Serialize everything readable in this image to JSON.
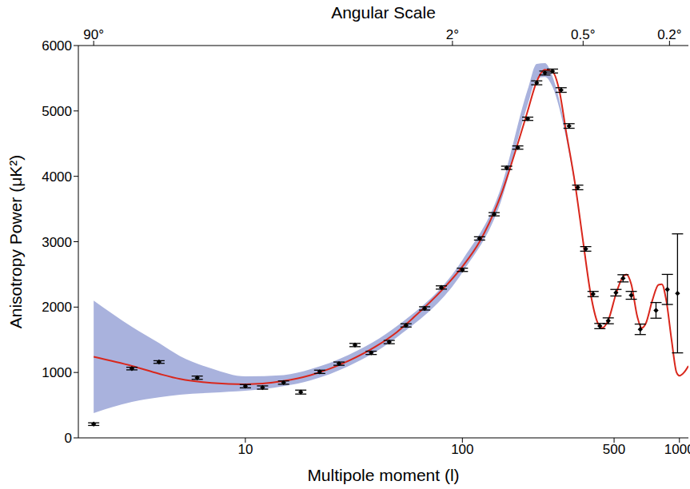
{
  "chart_data": {
    "type": "scatter",
    "x_label": "Multipole moment (l)",
    "y_label": "Anisotropy Power (μK²)",
    "x2_label": "Angular Scale",
    "log": "x",
    "xlim": [
      1.7,
      1100
    ],
    "xticks": [
      10,
      100,
      500,
      1000
    ],
    "x2ticks": [
      {
        "value": 2,
        "label": "90°"
      },
      {
        "value": 90,
        "label": "2°"
      },
      {
        "value": 360,
        "label": "0.5°"
      },
      {
        "value": 900,
        "label": "0.2°"
      }
    ],
    "ylim": [
      0,
      6000
    ],
    "yticks": [
      0,
      1000,
      2000,
      3000,
      4000,
      5000,
      6000
    ],
    "series": [
      {
        "type": "area",
        "color": "#a9b2dd",
        "x": [
          2,
          3,
          4,
          5,
          7,
          10,
          15,
          20,
          30,
          50,
          100,
          150,
          200,
          220,
          240,
          260,
          300,
          330
        ],
        "low": [
          380,
          550,
          620,
          660,
          690,
          720,
          790,
          880,
          1100,
          1540,
          2530,
          3600,
          5100,
          5490,
          5520,
          5370,
          4600,
          3850
        ],
        "high": [
          2100,
          1700,
          1450,
          1250,
          1060,
          940,
          960,
          1050,
          1270,
          1710,
          2720,
          3810,
          5330,
          5720,
          5730,
          5530,
          4700,
          3950
        ]
      },
      {
        "type": "line",
        "color": "#d9271c",
        "x": [
          2,
          3,
          4,
          5,
          7,
          10,
          12,
          15,
          20,
          30,
          40,
          50,
          60,
          80,
          100,
          120,
          150,
          180,
          200,
          220,
          240,
          260,
          280,
          300,
          330,
          360,
          390,
          420,
          440,
          470,
          510,
          540,
          570,
          600,
          640,
          670,
          700,
          750,
          800,
          830,
          870,
          920,
          970,
          1000,
          1050,
          1100
        ],
        "values": [
          1240,
          1100,
          980,
          900,
          840,
          820,
          830,
          870,
          960,
          1180,
          1400,
          1620,
          1850,
          2250,
          2620,
          3000,
          3700,
          4500,
          5000,
          5450,
          5630,
          5600,
          5300,
          4700,
          3900,
          3000,
          2200,
          1760,
          1680,
          1800,
          2200,
          2420,
          2500,
          2350,
          1850,
          1680,
          1750,
          2100,
          2340,
          2350,
          2100,
          1500,
          1000,
          950,
          1000,
          1100
        ]
      },
      {
        "type": "scatter",
        "color": "#000000",
        "marker": "diamond",
        "x": [
          2,
          3,
          4,
          6,
          10,
          12,
          15,
          18,
          22,
          27,
          32,
          38,
          46,
          55,
          67,
          80,
          100,
          120,
          140,
          160,
          180,
          200,
          220,
          240,
          260,
          285,
          310,
          340,
          370,
          400,
          430,
          470,
          510,
          550,
          600,
          660,
          780,
          880,
          980
        ],
        "values": [
          210,
          1060,
          1160,
          920,
          790,
          770,
          845,
          700,
          1010,
          1135,
          1420,
          1300,
          1465,
          1720,
          1980,
          2300,
          2570,
          3050,
          3420,
          4130,
          4440,
          4880,
          5430,
          5580,
          5610,
          5320,
          4770,
          3830,
          2890,
          2200,
          1710,
          1790,
          2220,
          2440,
          2180,
          1660,
          1950,
          2270,
          2210
        ],
        "errors": [
          20,
          20,
          20,
          25,
          25,
          25,
          25,
          30,
          25,
          25,
          25,
          25,
          25,
          25,
          25,
          25,
          25,
          25,
          25,
          25,
          25,
          25,
          30,
          30,
          30,
          35,
          35,
          35,
          35,
          40,
          40,
          45,
          50,
          55,
          60,
          80,
          120,
          230,
          910
        ]
      }
    ]
  }
}
